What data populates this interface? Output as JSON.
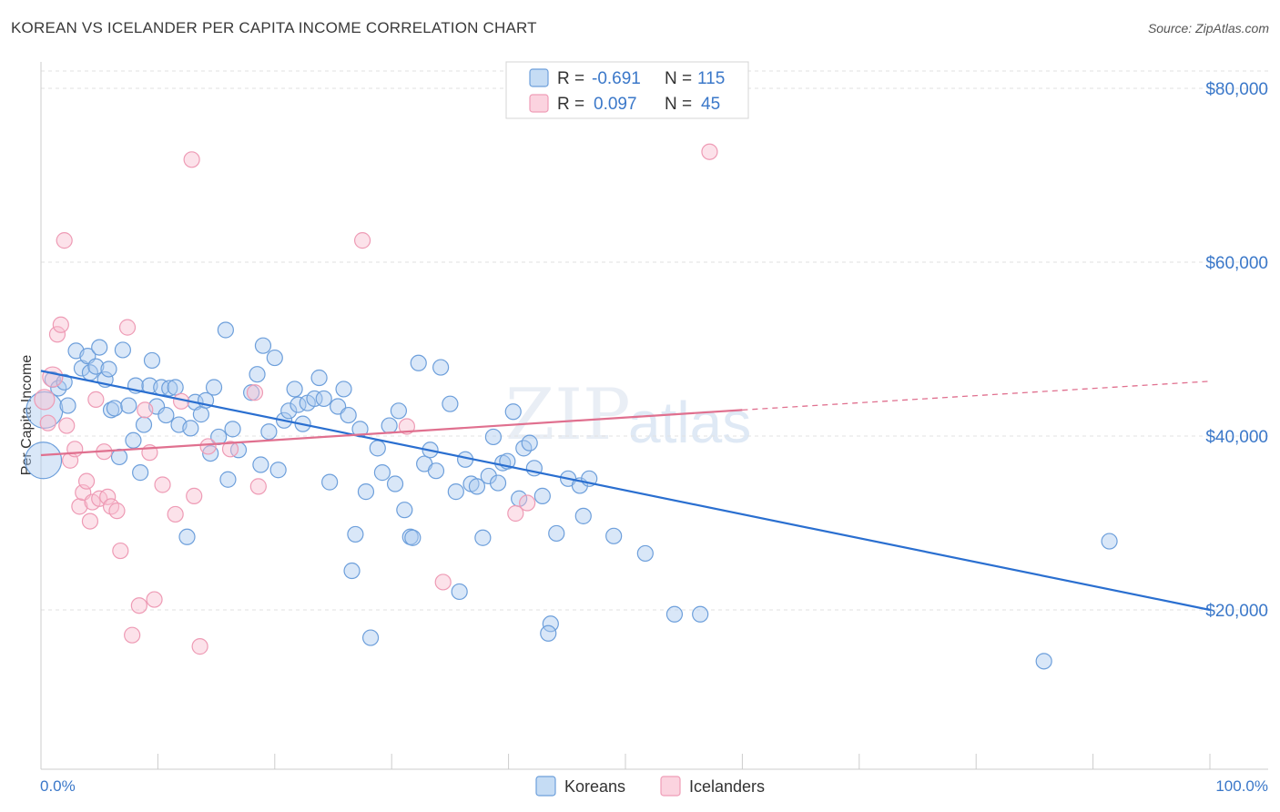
{
  "title": "KOREAN VS ICELANDER PER CAPITA INCOME CORRELATION CHART",
  "source": "Source: ZipAtlas.com",
  "watermark": {
    "zip": "ZIP",
    "atlas": "atlas"
  },
  "colors": {
    "korean": "#5b9bd5",
    "korean_line": "#2a6fd0",
    "icelander": "#f1a0b9",
    "icelander_line": "#e0708f",
    "label": "#3b78c9"
  },
  "legend": {
    "rows": [
      {
        "r_label": "R =",
        "r_value": "-0.691",
        "n_label": "N =",
        "n_value": "115"
      },
      {
        "r_label": "R =",
        "r_value": "0.097",
        "n_label": "N =",
        "n_value": "45"
      }
    ]
  },
  "bottom_legend": {
    "korean": "Koreans",
    "icelander": "Icelanders"
  },
  "chart_data": {
    "type": "scatter",
    "title": "KOREAN VS ICELANDER PER CAPITA INCOME CORRELATION CHART",
    "xlabel": "",
    "ylabel": "Per Capita Income",
    "xlim": [
      0,
      100
    ],
    "ylim": [
      4000,
      84000
    ],
    "x_tick_labels": {
      "min": "0.0%",
      "max": "100.0%"
    },
    "y_ticks": [
      20000,
      40000,
      60000,
      80000
    ],
    "y_tick_labels": [
      "$20,000",
      "$40,000",
      "$60,000",
      "$80,000"
    ],
    "series": [
      {
        "name": "Koreans",
        "trend": {
          "x0": 0,
          "y0": 47500,
          "x1": 100,
          "y1": 20000
        },
        "points": [
          [
            0.3,
            43000
          ],
          [
            0.2,
            37200
          ],
          [
            1,
            46500
          ],
          [
            1.5,
            45500
          ],
          [
            2,
            46200
          ],
          [
            2.3,
            43500
          ],
          [
            3,
            49800
          ],
          [
            3.5,
            47800
          ],
          [
            4,
            49200
          ],
          [
            4.2,
            47300
          ],
          [
            4.7,
            48000
          ],
          [
            5,
            50200
          ],
          [
            5.5,
            46500
          ],
          [
            5.8,
            47700
          ],
          [
            6,
            43000
          ],
          [
            6.3,
            43200
          ],
          [
            6.7,
            37600
          ],
          [
            7,
            49900
          ],
          [
            7.5,
            43500
          ],
          [
            7.9,
            39500
          ],
          [
            8.1,
            45800
          ],
          [
            8.5,
            35800
          ],
          [
            8.8,
            41300
          ],
          [
            9.3,
            45800
          ],
          [
            9.5,
            48700
          ],
          [
            9.9,
            43400
          ],
          [
            10.3,
            45600
          ],
          [
            10.7,
            42400
          ],
          [
            11,
            45500
          ],
          [
            11.5,
            45600
          ],
          [
            11.8,
            41300
          ],
          [
            12.5,
            28400
          ],
          [
            12.8,
            40900
          ],
          [
            13.2,
            43900
          ],
          [
            13.7,
            42500
          ],
          [
            14.1,
            44100
          ],
          [
            14.5,
            38000
          ],
          [
            14.8,
            45600
          ],
          [
            15.2,
            39900
          ],
          [
            15.8,
            52200
          ],
          [
            16,
            35000
          ],
          [
            16.4,
            40800
          ],
          [
            16.9,
            38400
          ],
          [
            18,
            45000
          ],
          [
            18.5,
            47100
          ],
          [
            18.8,
            36700
          ],
          [
            19,
            50400
          ],
          [
            19.5,
            40500
          ],
          [
            20,
            49000
          ],
          [
            20.3,
            36100
          ],
          [
            20.8,
            41800
          ],
          [
            21.2,
            42900
          ],
          [
            21.7,
            45400
          ],
          [
            22,
            43600
          ],
          [
            22.4,
            41400
          ],
          [
            22.8,
            43800
          ],
          [
            23.4,
            44300
          ],
          [
            23.8,
            46700
          ],
          [
            24.2,
            44300
          ],
          [
            24.7,
            34700
          ],
          [
            25.4,
            43400
          ],
          [
            25.9,
            45400
          ],
          [
            26.3,
            42400
          ],
          [
            26.6,
            24500
          ],
          [
            26.9,
            28700
          ],
          [
            27.3,
            40800
          ],
          [
            27.8,
            33600
          ],
          [
            28.2,
            16800
          ],
          [
            28.8,
            38600
          ],
          [
            29.2,
            35800
          ],
          [
            29.8,
            41200
          ],
          [
            30.3,
            34500
          ],
          [
            30.6,
            42900
          ],
          [
            31.1,
            31500
          ],
          [
            31.6,
            28400
          ],
          [
            31.8,
            28300
          ],
          [
            32.3,
            48400
          ],
          [
            32.8,
            36800
          ],
          [
            33.3,
            38400
          ],
          [
            33.8,
            36000
          ],
          [
            34.2,
            47900
          ],
          [
            35,
            43700
          ],
          [
            35.5,
            33600
          ],
          [
            35.8,
            22100
          ],
          [
            36.3,
            37300
          ],
          [
            36.8,
            34500
          ],
          [
            37.3,
            34200
          ],
          [
            37.8,
            28300
          ],
          [
            38.3,
            35400
          ],
          [
            38.7,
            39900
          ],
          [
            39.1,
            34600
          ],
          [
            39.5,
            36900
          ],
          [
            39.9,
            37100
          ],
          [
            40.4,
            42800
          ],
          [
            40.9,
            32800
          ],
          [
            41.3,
            38600
          ],
          [
            41.8,
            39200
          ],
          [
            42.2,
            36300
          ],
          [
            42.9,
            33100
          ],
          [
            43.6,
            18400
          ],
          [
            43.4,
            17300
          ],
          [
            44.1,
            28800
          ],
          [
            45.1,
            35100
          ],
          [
            46.1,
            34300
          ],
          [
            46.4,
            30800
          ],
          [
            46.9,
            35100
          ],
          [
            49,
            28500
          ],
          [
            51.7,
            26500
          ],
          [
            54.2,
            19500
          ],
          [
            56.4,
            19500
          ],
          [
            85.8,
            14100
          ],
          [
            91.4,
            27900
          ]
        ]
      },
      {
        "name": "Icelanders",
        "trend": {
          "x0": 0,
          "y0": 37800,
          "x1": 60,
          "y1": 43000,
          "dash_x1": 100,
          "dash_y1": 46300
        },
        "points": [
          [
            0.3,
            44200
          ],
          [
            0.6,
            41500
          ],
          [
            1,
            46800
          ],
          [
            1.4,
            51700
          ],
          [
            1.7,
            52800
          ],
          [
            2,
            62500
          ],
          [
            2.2,
            41200
          ],
          [
            2.5,
            37200
          ],
          [
            2.9,
            38500
          ],
          [
            3.3,
            31900
          ],
          [
            3.6,
            33500
          ],
          [
            3.9,
            34800
          ],
          [
            4.2,
            30200
          ],
          [
            4.4,
            32400
          ],
          [
            4.7,
            44200
          ],
          [
            5,
            32800
          ],
          [
            5.4,
            38200
          ],
          [
            5.7,
            33000
          ],
          [
            6,
            31900
          ],
          [
            6.5,
            31400
          ],
          [
            6.8,
            26800
          ],
          [
            7.4,
            52500
          ],
          [
            7.8,
            17100
          ],
          [
            8.4,
            20500
          ],
          [
            8.9,
            43000
          ],
          [
            9.3,
            38100
          ],
          [
            9.7,
            21200
          ],
          [
            10.4,
            34400
          ],
          [
            11.5,
            31000
          ],
          [
            12,
            44000
          ],
          [
            12.9,
            71800
          ],
          [
            13.1,
            33100
          ],
          [
            13.6,
            15800
          ],
          [
            14.3,
            38800
          ],
          [
            16.2,
            38500
          ],
          [
            18.3,
            45000
          ],
          [
            18.6,
            34200
          ],
          [
            27.5,
            62500
          ],
          [
            31.3,
            41100
          ],
          [
            34.4,
            23200
          ],
          [
            40.6,
            31100
          ],
          [
            41.6,
            32300
          ],
          [
            57.2,
            72700
          ]
        ]
      }
    ]
  }
}
